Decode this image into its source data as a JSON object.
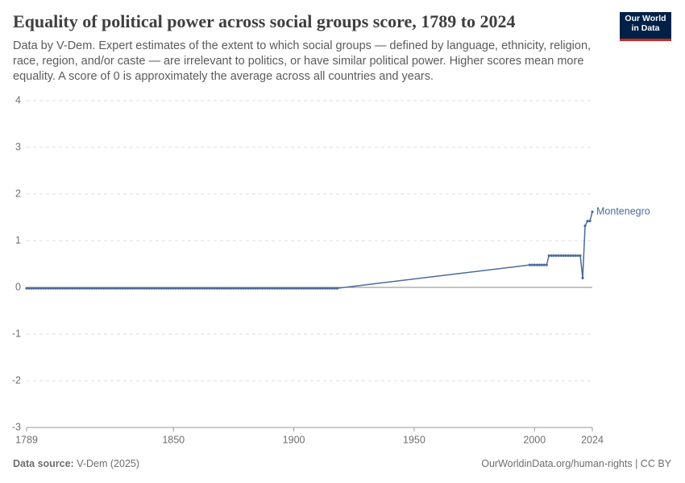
{
  "chart_data": {
    "type": "line",
    "title": "Equality of political power across social groups score, 1789 to 2024",
    "subtitle": "Data by V-Dem. Expert estimates of the extent to which social groups — defined by language, ethnicity, religion, race, region, and/or caste — are irrelevant to politics, or have similar political power. Higher scores mean more equality. A score of 0 is approximately the average across all countries and years.",
    "logo": [
      "Our World",
      "in Data"
    ],
    "source_label": "Data source:",
    "source": "V-Dem (2025)",
    "license": "OurWorldinData.org/human-rights | CC BY",
    "x": [
      1789,
      1790,
      1791,
      1792,
      1793,
      1794,
      1795,
      1796,
      1797,
      1798,
      1799,
      1800,
      1801,
      1802,
      1803,
      1804,
      1805,
      1806,
      1807,
      1808,
      1809,
      1810,
      1811,
      1812,
      1813,
      1814,
      1815,
      1816,
      1817,
      1818,
      1819,
      1820,
      1821,
      1822,
      1823,
      1824,
      1825,
      1826,
      1827,
      1828,
      1829,
      1830,
      1831,
      1832,
      1833,
      1834,
      1835,
      1836,
      1837,
      1838,
      1839,
      1840,
      1841,
      1842,
      1843,
      1844,
      1845,
      1846,
      1847,
      1848,
      1849,
      1850,
      1851,
      1852,
      1853,
      1854,
      1855,
      1856,
      1857,
      1858,
      1859,
      1860,
      1861,
      1862,
      1863,
      1864,
      1865,
      1866,
      1867,
      1868,
      1869,
      1870,
      1871,
      1872,
      1873,
      1874,
      1875,
      1876,
      1877,
      1878,
      1879,
      1880,
      1881,
      1882,
      1883,
      1884,
      1885,
      1886,
      1887,
      1888,
      1889,
      1890,
      1891,
      1892,
      1893,
      1894,
      1895,
      1896,
      1897,
      1898,
      1899,
      1900,
      1901,
      1902,
      1903,
      1904,
      1905,
      1906,
      1907,
      1908,
      1909,
      1910,
      1911,
      1912,
      1913,
      1914,
      1915,
      1916,
      1917,
      1918,
      1998,
      1999,
      2000,
      2001,
      2002,
      2003,
      2004,
      2005,
      2006,
      2007,
      2008,
      2009,
      2010,
      2011,
      2012,
      2013,
      2014,
      2015,
      2016,
      2017,
      2018,
      2019,
      2020,
      2021,
      2022,
      2023,
      2024
    ],
    "series": [
      {
        "name": "Montenegro",
        "color": "#4c6a9c",
        "values": [
          -0.02,
          -0.02,
          -0.02,
          -0.02,
          -0.02,
          -0.02,
          -0.02,
          -0.02,
          -0.02,
          -0.02,
          -0.02,
          -0.02,
          -0.02,
          -0.02,
          -0.02,
          -0.02,
          -0.02,
          -0.02,
          -0.02,
          -0.02,
          -0.02,
          -0.02,
          -0.02,
          -0.02,
          -0.02,
          -0.02,
          -0.02,
          -0.02,
          -0.02,
          -0.02,
          -0.02,
          -0.02,
          -0.02,
          -0.02,
          -0.02,
          -0.02,
          -0.02,
          -0.02,
          -0.02,
          -0.02,
          -0.02,
          -0.02,
          -0.02,
          -0.02,
          -0.02,
          -0.02,
          -0.02,
          -0.02,
          -0.02,
          -0.02,
          -0.02,
          -0.02,
          -0.02,
          -0.02,
          -0.02,
          -0.02,
          -0.02,
          -0.02,
          -0.02,
          -0.02,
          -0.02,
          -0.02,
          -0.02,
          -0.02,
          -0.02,
          -0.02,
          -0.02,
          -0.02,
          -0.02,
          -0.02,
          -0.02,
          -0.02,
          -0.02,
          -0.02,
          -0.02,
          -0.02,
          -0.02,
          -0.02,
          -0.02,
          -0.02,
          -0.02,
          -0.02,
          -0.02,
          -0.02,
          -0.02,
          -0.02,
          -0.02,
          -0.02,
          -0.02,
          -0.02,
          -0.02,
          -0.02,
          -0.02,
          -0.02,
          -0.02,
          -0.02,
          -0.02,
          -0.02,
          -0.02,
          -0.02,
          -0.02,
          -0.02,
          -0.02,
          -0.02,
          -0.02,
          -0.02,
          -0.02,
          -0.02,
          -0.02,
          -0.02,
          -0.02,
          -0.02,
          -0.02,
          -0.02,
          -0.02,
          -0.02,
          -0.02,
          -0.02,
          -0.02,
          -0.02,
          -0.02,
          -0.02,
          -0.02,
          -0.02,
          -0.02,
          -0.02,
          -0.02,
          -0.02,
          -0.02,
          -0.02,
          0.48,
          0.48,
          0.48,
          0.48,
          0.48,
          0.48,
          0.48,
          0.48,
          0.68,
          0.68,
          0.68,
          0.68,
          0.68,
          0.68,
          0.68,
          0.68,
          0.68,
          0.68,
          0.68,
          0.68,
          0.68,
          0.68,
          0.2,
          1.32,
          1.42,
          1.42,
          1.62
        ]
      }
    ],
    "xlim": [
      1789,
      2024
    ],
    "xticks": [
      1789,
      1850,
      1900,
      1950,
      2000,
      2024
    ],
    "ylim": [
      -3,
      4
    ],
    "yticks": [
      -3,
      -2,
      -1,
      0,
      1,
      2,
      3,
      4
    ],
    "grid": true
  }
}
